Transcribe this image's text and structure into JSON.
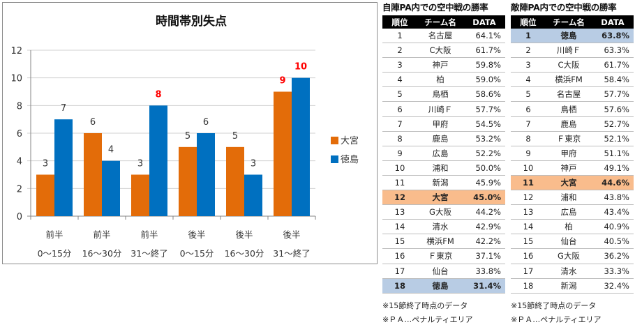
{
  "chart_data": {
    "type": "bar",
    "title": "時間帯別失点",
    "categories": [
      [
        "前半",
        "0〜15分"
      ],
      [
        "前半",
        "16〜30分"
      ],
      [
        "前半",
        "31〜終了"
      ],
      [
        "後半",
        "0〜15分"
      ],
      [
        "後半",
        "16〜30分"
      ],
      [
        "後半",
        "31〜終了"
      ]
    ],
    "series": [
      {
        "name": "大宮",
        "color": "#e36c09",
        "values": [
          3,
          6,
          3,
          5,
          5,
          9
        ]
      },
      {
        "name": "徳島",
        "color": "#0070c0",
        "values": [
          7,
          4,
          8,
          6,
          3,
          10
        ]
      }
    ],
    "highlight_label_color": "#ff0000",
    "highlighted_labels": [
      {
        "series": 1,
        "index": 2
      },
      {
        "series": 0,
        "index": 5
      },
      {
        "series": 1,
        "index": 5
      }
    ],
    "ylim": [
      0,
      12
    ],
    "yticks": [
      0,
      2,
      4,
      6,
      8,
      10,
      12
    ],
    "xlabel": "",
    "ylabel": "",
    "grid": true,
    "legend": "right"
  },
  "tables": [
    {
      "title": "自陣PA内での空中戦の勝率",
      "headers": [
        "順位",
        "チーム名",
        "DATA"
      ],
      "rows": [
        {
          "rank": "1",
          "team": "名古屋",
          "data": "64.1%",
          "hl": ""
        },
        {
          "rank": "2",
          "team": "C大阪",
          "data": "61.7%",
          "hl": ""
        },
        {
          "rank": "3",
          "team": "神戸",
          "data": "59.8%",
          "hl": ""
        },
        {
          "rank": "4",
          "team": "柏",
          "data": "59.0%",
          "hl": ""
        },
        {
          "rank": "5",
          "team": "鳥栖",
          "data": "58.6%",
          "hl": ""
        },
        {
          "rank": "6",
          "team": "川崎Ｆ",
          "data": "57.7%",
          "hl": ""
        },
        {
          "rank": "7",
          "team": "甲府",
          "data": "54.5%",
          "hl": ""
        },
        {
          "rank": "8",
          "team": "鹿島",
          "data": "53.2%",
          "hl": ""
        },
        {
          "rank": "9",
          "team": "広島",
          "data": "52.2%",
          "hl": ""
        },
        {
          "rank": "10",
          "team": "浦和",
          "data": "50.0%",
          "hl": ""
        },
        {
          "rank": "11",
          "team": "新潟",
          "data": "45.9%",
          "hl": ""
        },
        {
          "rank": "12",
          "team": "大宮",
          "data": "45.0%",
          "hl": "orange"
        },
        {
          "rank": "13",
          "team": "G大阪",
          "data": "44.2%",
          "hl": ""
        },
        {
          "rank": "14",
          "team": "清水",
          "data": "42.9%",
          "hl": ""
        },
        {
          "rank": "15",
          "team": "横浜FM",
          "data": "42.2%",
          "hl": ""
        },
        {
          "rank": "16",
          "team": "Ｆ東京",
          "data": "37.1%",
          "hl": ""
        },
        {
          "rank": "17",
          "team": "仙台",
          "data": "33.8%",
          "hl": ""
        },
        {
          "rank": "18",
          "team": "徳島",
          "data": "31.4%",
          "hl": "blue"
        }
      ],
      "notes": [
        "※15節終了時点のデータ",
        "※ＰＡ…ペナルティエリア"
      ]
    },
    {
      "title": "敵陣PA内での空中戦の勝率",
      "headers": [
        "順位",
        "チーム名",
        "DATA"
      ],
      "rows": [
        {
          "rank": "1",
          "team": "徳島",
          "data": "63.8%",
          "hl": "blue"
        },
        {
          "rank": "2",
          "team": "川崎Ｆ",
          "data": "63.3%",
          "hl": ""
        },
        {
          "rank": "3",
          "team": "C大阪",
          "data": "61.7%",
          "hl": ""
        },
        {
          "rank": "4",
          "team": "横浜FM",
          "data": "58.4%",
          "hl": ""
        },
        {
          "rank": "5",
          "team": "名古屋",
          "data": "57.7%",
          "hl": ""
        },
        {
          "rank": "6",
          "team": "鳥栖",
          "data": "57.6%",
          "hl": ""
        },
        {
          "rank": "7",
          "team": "鹿島",
          "data": "52.7%",
          "hl": ""
        },
        {
          "rank": "8",
          "team": "Ｆ東京",
          "data": "52.1%",
          "hl": ""
        },
        {
          "rank": "9",
          "team": "甲府",
          "data": "51.1%",
          "hl": ""
        },
        {
          "rank": "10",
          "team": "神戸",
          "data": "49.1%",
          "hl": ""
        },
        {
          "rank": "11",
          "team": "大宮",
          "data": "44.6%",
          "hl": "orange"
        },
        {
          "rank": "12",
          "team": "浦和",
          "data": "43.8%",
          "hl": ""
        },
        {
          "rank": "13",
          "team": "広島",
          "data": "43.4%",
          "hl": ""
        },
        {
          "rank": "14",
          "team": "柏",
          "data": "40.9%",
          "hl": ""
        },
        {
          "rank": "15",
          "team": "仙台",
          "data": "40.5%",
          "hl": ""
        },
        {
          "rank": "16",
          "team": "G大阪",
          "data": "36.2%",
          "hl": ""
        },
        {
          "rank": "17",
          "team": "清水",
          "data": "33.3%",
          "hl": ""
        },
        {
          "rank": "18",
          "team": "新潟",
          "data": "32.4%",
          "hl": ""
        }
      ],
      "notes": [
        "※15節終了時点のデータ",
        "※ＰＡ…ペナルティエリア"
      ]
    }
  ]
}
